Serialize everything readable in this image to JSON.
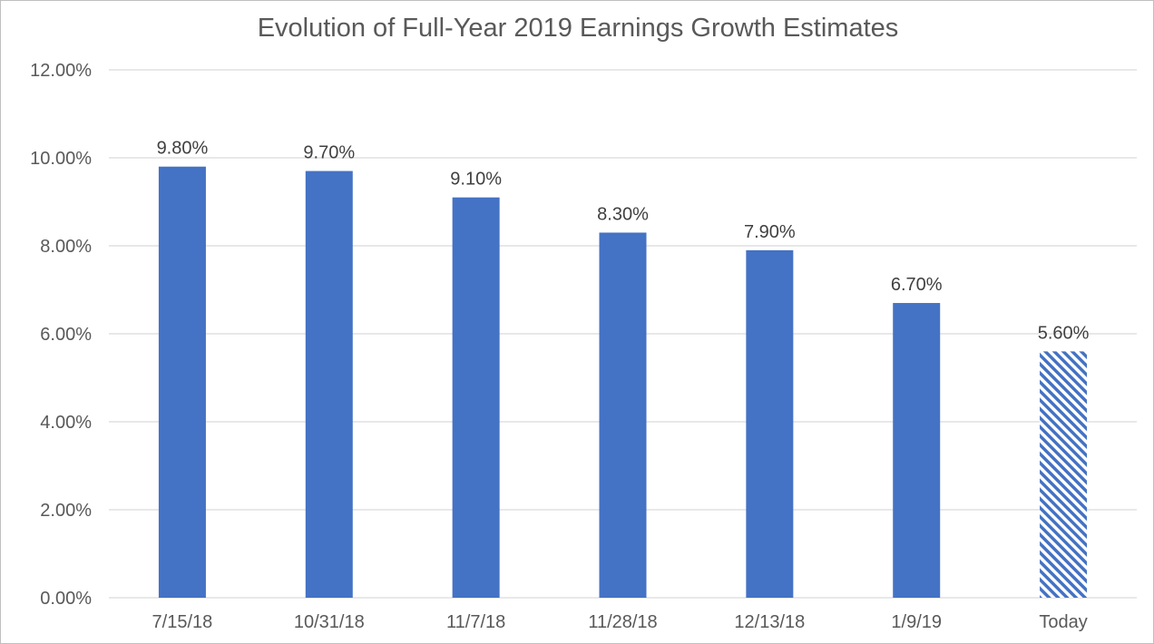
{
  "chart_data": {
    "type": "bar",
    "title": "Evolution of Full-Year 2019 Earnings Growth Estimates",
    "xlabel": "",
    "ylabel": "",
    "categories": [
      "7/15/18",
      "10/31/18",
      "11/7/18",
      "11/28/18",
      "12/13/18",
      "1/9/19",
      "Today"
    ],
    "values": [
      9.8,
      9.7,
      9.1,
      8.3,
      7.9,
      6.7,
      5.6
    ],
    "data_labels": [
      "9.80%",
      "9.70%",
      "9.10%",
      "8.30%",
      "7.90%",
      "6.70%",
      "5.60%"
    ],
    "ylim": [
      0,
      12
    ],
    "y_ticks": [
      {
        "value": 0,
        "label": "0.00%"
      },
      {
        "value": 2,
        "label": "2.00%"
      },
      {
        "value": 4,
        "label": "4.00%"
      },
      {
        "value": 6,
        "label": "6.00%"
      },
      {
        "value": 8,
        "label": "8.00%"
      },
      {
        "value": 10,
        "label": "10.00%"
      },
      {
        "value": 12,
        "label": "12.00%"
      }
    ],
    "grid": true,
    "legend": "none",
    "colors": {
      "bar": "#4472C4",
      "hatched_bar_stripe": "#4472C4",
      "hatched_bar_background": "#ffffff",
      "gridline": "#d9d9d9",
      "text": "#595959"
    },
    "hatched_categories": [
      "Today"
    ]
  }
}
